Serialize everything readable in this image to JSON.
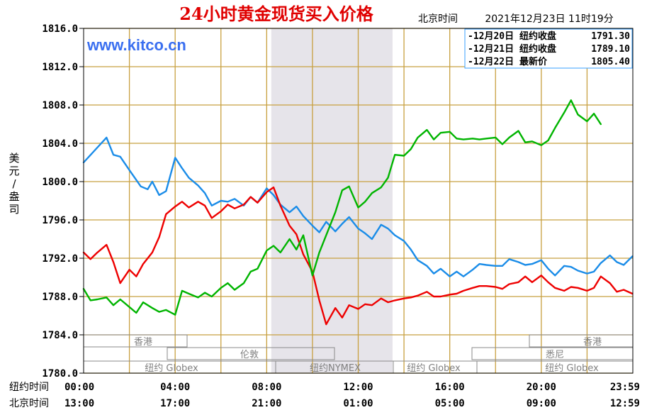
{
  "header": {
    "title": "24小时黄金现货买入价格",
    "beijing_time_label": "北京时间",
    "timestamp": "2021年12月23日 11时19分"
  },
  "watermark": "www.kitco.cn",
  "y_axis_label": [
    "美",
    "元",
    "/",
    "盎",
    "司"
  ],
  "x_rows": {
    "ny_label": "纽约时间",
    "bj_label": "北京时间",
    "ny_ticks": [
      "00:00",
      "04:00",
      "08:00",
      "12:00",
      "16:00",
      "20:00",
      "23:59"
    ],
    "bj_ticks": [
      "13:00",
      "17:00",
      "21:00",
      "01:00",
      "05:00",
      "09:00",
      "12:59"
    ]
  },
  "sessions": {
    "hongkong_left": "香港",
    "london": "伦敦",
    "ny_globex_left": "纽约 Globex",
    "ny_nymex": "纽约NYMEX",
    "ny_globex_mid": "纽约 Globex",
    "hongkong_right": "香港",
    "sydney": "悉尼",
    "ny_globex_right": "纽约 Globex"
  },
  "colors": {
    "frame": "#000000",
    "grid": "#c8a040",
    "shade": "#e6e4ea",
    "dec20": "#1a8ce8",
    "dec21": "#ee0000",
    "dec22": "#00b400"
  },
  "legend": [
    {
      "label": "-12月20日 纽约收盘",
      "value": "1791.30",
      "color": "#1a8ce8"
    },
    {
      "label": "-12月21日 纽约收盘",
      "value": "1789.10",
      "color": "#ee0000"
    },
    {
      "label": "-12月22日  最新价",
      "value": "1805.40",
      "color": "#00b400"
    }
  ],
  "chart_data": {
    "type": "line",
    "x_unit": "hours (New York time)",
    "xlim": [
      0,
      24
    ],
    "ylim": [
      1780,
      1816
    ],
    "y_ticks": [
      "1780.0",
      "1784.0",
      "1788.0",
      "1792.0",
      "1796.0",
      "1800.0",
      "1804.0",
      "1808.0",
      "1812.0",
      "1816.0"
    ],
    "shaded_x_range": [
      8.2,
      13.5
    ],
    "series": [
      {
        "name": "12月20日",
        "color": "#1a8ce8",
        "x": [
          0,
          0.5,
          1.0,
          1.3,
          1.6,
          2.0,
          2.5,
          2.8,
          3.0,
          3.3,
          3.6,
          4.0,
          4.3,
          4.6,
          5.0,
          5.3,
          5.6,
          6.0,
          6.3,
          6.6,
          7.0,
          7.3,
          7.6,
          8.0,
          8.3,
          8.6,
          9.0,
          9.3,
          9.6,
          10.0,
          10.3,
          10.6,
          11.0,
          11.3,
          11.6,
          12.0,
          12.3,
          12.6,
          13.0,
          13.3,
          13.6,
          14.0,
          14.3,
          14.6,
          15.0,
          15.3,
          15.6,
          16.0,
          16.3,
          16.6,
          17.0,
          17.3,
          17.6,
          18.0,
          18.3,
          18.6,
          19.0,
          19.3,
          19.6,
          20.0,
          20.3,
          20.6,
          21.0,
          21.3,
          21.6,
          22.0,
          22.3,
          22.6,
          23.0,
          23.3,
          23.6,
          23.98
        ],
        "y": [
          1802.0,
          1803.3,
          1804.6,
          1802.8,
          1802.6,
          1801.2,
          1799.5,
          1799.2,
          1800.0,
          1798.6,
          1799.0,
          1802.5,
          1801.4,
          1800.4,
          1799.6,
          1798.8,
          1797.5,
          1798.0,
          1797.9,
          1798.2,
          1797.5,
          1798.4,
          1797.8,
          1799.3,
          1798.6,
          1797.6,
          1796.8,
          1797.4,
          1796.4,
          1795.4,
          1794.7,
          1795.8,
          1794.8,
          1795.6,
          1796.3,
          1795.1,
          1794.6,
          1794.0,
          1795.5,
          1795.1,
          1794.4,
          1793.8,
          1792.9,
          1791.8,
          1791.2,
          1790.4,
          1790.9,
          1790.1,
          1790.6,
          1790.1,
          1790.8,
          1791.4,
          1791.3,
          1791.2,
          1791.2,
          1791.9,
          1791.6,
          1791.3,
          1791.4,
          1791.8,
          1790.9,
          1790.2,
          1791.2,
          1791.1,
          1790.7,
          1790.4,
          1790.6,
          1791.5,
          1792.3,
          1791.6,
          1791.3,
          1792.2
        ]
      },
      {
        "name": "12月21日",
        "color": "#ee0000",
        "x": [
          0,
          0.3,
          0.6,
          1.0,
          1.3,
          1.6,
          2.0,
          2.3,
          2.6,
          3.0,
          3.3,
          3.6,
          4.0,
          4.3,
          4.6,
          5.0,
          5.3,
          5.6,
          6.0,
          6.3,
          6.6,
          7.0,
          7.3,
          7.6,
          8.0,
          8.3,
          8.6,
          9.0,
          9.3,
          9.6,
          10.0,
          10.3,
          10.6,
          11.0,
          11.3,
          11.6,
          12.0,
          12.3,
          12.6,
          13.0,
          13.3,
          13.6,
          14.0,
          14.3,
          14.6,
          15.0,
          15.3,
          15.6,
          16.0,
          16.3,
          16.6,
          17.0,
          17.3,
          17.6,
          18.0,
          18.3,
          18.6,
          19.0,
          19.3,
          19.6,
          20.0,
          20.3,
          20.6,
          21.0,
          21.3,
          21.6,
          22.0,
          22.3,
          22.6,
          23.0,
          23.3,
          23.6,
          23.98
        ],
        "y": [
          1792.6,
          1791.9,
          1792.6,
          1793.4,
          1791.6,
          1789.4,
          1790.8,
          1790.1,
          1791.4,
          1792.6,
          1794.2,
          1796.6,
          1797.4,
          1797.9,
          1797.3,
          1797.9,
          1797.5,
          1796.2,
          1796.9,
          1797.6,
          1797.2,
          1797.6,
          1798.4,
          1797.8,
          1798.9,
          1799.4,
          1797.5,
          1795.4,
          1794.5,
          1792.4,
          1790.6,
          1787.6,
          1785.1,
          1786.8,
          1785.8,
          1787.1,
          1786.7,
          1787.2,
          1787.1,
          1787.8,
          1787.4,
          1787.6,
          1787.8,
          1787.9,
          1788.1,
          1788.5,
          1788.0,
          1788.0,
          1788.2,
          1788.3,
          1788.6,
          1788.9,
          1789.1,
          1789.1,
          1789.0,
          1788.8,
          1789.3,
          1789.5,
          1790.1,
          1789.5,
          1790.2,
          1789.5,
          1788.9,
          1788.6,
          1789.0,
          1788.9,
          1788.6,
          1788.9,
          1790.1,
          1789.4,
          1788.5,
          1788.7,
          1788.3
        ]
      },
      {
        "name": "12月22日",
        "color": "#00b400",
        "x": [
          0,
          0.3,
          0.6,
          1.0,
          1.3,
          1.6,
          2.0,
          2.3,
          2.6,
          3.0,
          3.3,
          3.6,
          4.0,
          4.3,
          4.6,
          5.0,
          5.3,
          5.6,
          6.0,
          6.3,
          6.6,
          7.0,
          7.3,
          7.6,
          8.0,
          8.3,
          8.6,
          9.0,
          9.3,
          9.6,
          10.0,
          10.3,
          10.6,
          11.0,
          11.3,
          11.6,
          12.0,
          12.3,
          12.6,
          13.0,
          13.3,
          13.6,
          14.0,
          14.3,
          14.6,
          15.0,
          15.3,
          15.6,
          16.0,
          16.3,
          16.6,
          17.0,
          17.3,
          17.6,
          18.0,
          18.3,
          18.6,
          19.0,
          19.3,
          19.6,
          20.0,
          20.3,
          20.6,
          21.0,
          21.3,
          21.6,
          22.0,
          22.3,
          22.6
        ],
        "y": [
          1788.8,
          1787.6,
          1787.7,
          1787.9,
          1787.1,
          1787.7,
          1786.9,
          1786.3,
          1787.4,
          1786.8,
          1786.4,
          1786.6,
          1786.1,
          1788.6,
          1788.3,
          1787.9,
          1788.4,
          1788.0,
          1788.9,
          1789.4,
          1788.7,
          1789.4,
          1790.6,
          1790.9,
          1792.8,
          1793.3,
          1792.6,
          1794.0,
          1792.9,
          1794.4,
          1790.2,
          1792.6,
          1794.4,
          1796.8,
          1799.1,
          1799.5,
          1797.3,
          1797.9,
          1798.8,
          1799.4,
          1800.4,
          1802.8,
          1802.7,
          1803.4,
          1804.6,
          1805.4,
          1804.4,
          1805.1,
          1805.2,
          1804.5,
          1804.4,
          1804.5,
          1804.4,
          1804.5,
          1804.6,
          1803.9,
          1804.6,
          1805.3,
          1804.1,
          1804.2,
          1803.8,
          1804.3,
          1805.6,
          1807.2,
          1808.5,
          1807.0,
          1806.3,
          1807.1,
          1806.0
        ]
      }
    ]
  }
}
